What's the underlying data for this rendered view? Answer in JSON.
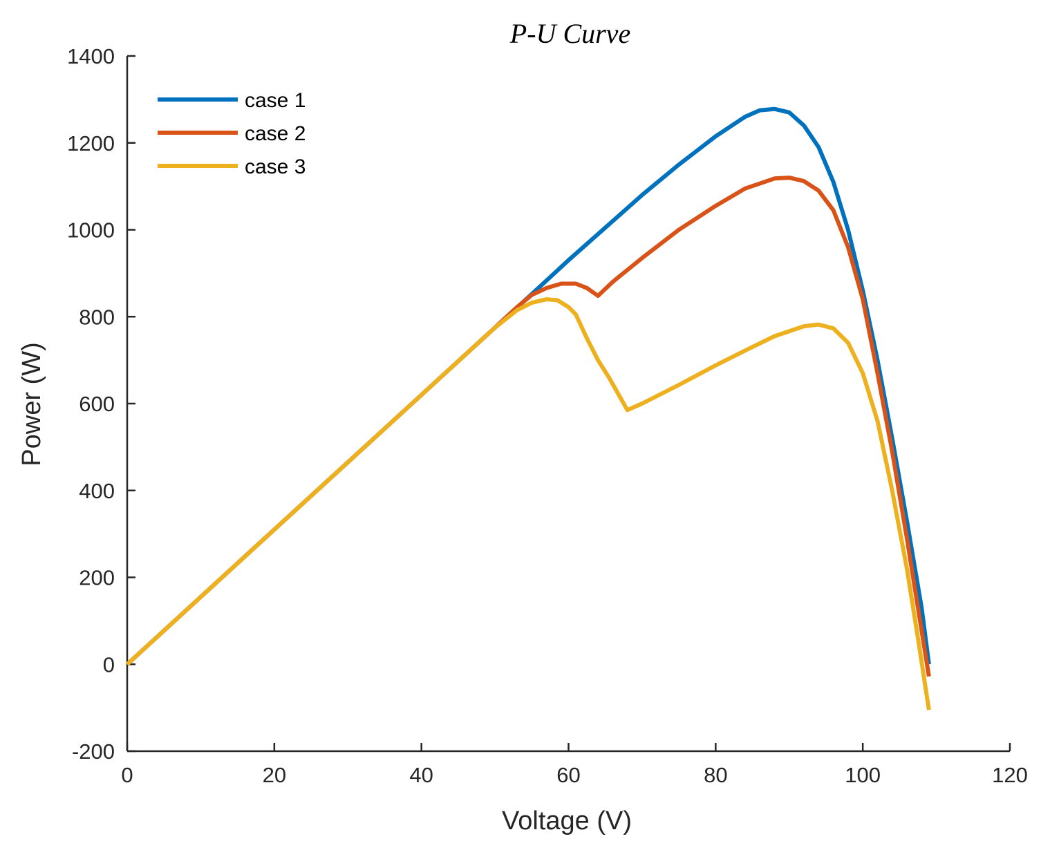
{
  "chart_data": {
    "type": "line",
    "title": "P-U Curve",
    "xlabel": "Voltage (V)",
    "ylabel": "Power (W)",
    "xlim": [
      0,
      120
    ],
    "ylim": [
      -200,
      1400
    ],
    "xticks": [
      0,
      20,
      40,
      60,
      80,
      100,
      120
    ],
    "yticks": [
      -200,
      0,
      200,
      400,
      600,
      800,
      1000,
      1200,
      1400
    ],
    "grid": false,
    "legend_position": "top-left",
    "series": [
      {
        "name": "case 1",
        "color": "#0072BD",
        "points": [
          [
            0,
            0
          ],
          [
            10,
            155
          ],
          [
            20,
            310
          ],
          [
            30,
            465
          ],
          [
            40,
            620
          ],
          [
            50,
            775
          ],
          [
            55,
            852
          ],
          [
            60,
            930
          ],
          [
            65,
            1005
          ],
          [
            70,
            1080
          ],
          [
            75,
            1150
          ],
          [
            80,
            1215
          ],
          [
            84,
            1260
          ],
          [
            86,
            1275
          ],
          [
            88,
            1278
          ],
          [
            90,
            1270
          ],
          [
            92,
            1240
          ],
          [
            94,
            1190
          ],
          [
            96,
            1110
          ],
          [
            98,
            1000
          ],
          [
            100,
            860
          ],
          [
            102,
            700
          ],
          [
            104,
            520
          ],
          [
            106,
            330
          ],
          [
            108,
            130
          ],
          [
            109,
            0
          ]
        ]
      },
      {
        "name": "case 2",
        "color": "#D95319",
        "points": [
          [
            0,
            0
          ],
          [
            10,
            155
          ],
          [
            20,
            310
          ],
          [
            30,
            465
          ],
          [
            40,
            620
          ],
          [
            50,
            775
          ],
          [
            53,
            822
          ],
          [
            55,
            850
          ],
          [
            57,
            866
          ],
          [
            59,
            876
          ],
          [
            61,
            876
          ],
          [
            62.5,
            866
          ],
          [
            64,
            848
          ],
          [
            66,
            880
          ],
          [
            70,
            935
          ],
          [
            75,
            1000
          ],
          [
            80,
            1055
          ],
          [
            84,
            1095
          ],
          [
            88,
            1118
          ],
          [
            90,
            1120
          ],
          [
            92,
            1112
          ],
          [
            94,
            1090
          ],
          [
            96,
            1045
          ],
          [
            98,
            960
          ],
          [
            100,
            840
          ],
          [
            102,
            670
          ],
          [
            104,
            490
          ],
          [
            106,
            290
          ],
          [
            107.5,
            130
          ],
          [
            109,
            -28
          ]
        ]
      },
      {
        "name": "case 3",
        "color": "#EDB120",
        "points": [
          [
            0,
            0
          ],
          [
            10,
            155
          ],
          [
            20,
            310
          ],
          [
            30,
            465
          ],
          [
            40,
            620
          ],
          [
            50,
            775
          ],
          [
            53,
            815
          ],
          [
            55,
            832
          ],
          [
            57,
            840
          ],
          [
            58.5,
            838
          ],
          [
            60,
            822
          ],
          [
            61,
            805
          ],
          [
            62.5,
            750
          ],
          [
            64,
            700
          ],
          [
            65.5,
            660
          ],
          [
            67,
            615
          ],
          [
            68,
            585
          ],
          [
            70,
            600
          ],
          [
            75,
            643
          ],
          [
            80,
            688
          ],
          [
            84,
            722
          ],
          [
            88,
            755
          ],
          [
            92,
            778
          ],
          [
            94,
            782
          ],
          [
            96,
            773
          ],
          [
            98,
            740
          ],
          [
            100,
            670
          ],
          [
            102,
            560
          ],
          [
            104,
            400
          ],
          [
            106,
            220
          ],
          [
            107.5,
            60
          ],
          [
            109,
            -105
          ]
        ]
      }
    ]
  }
}
